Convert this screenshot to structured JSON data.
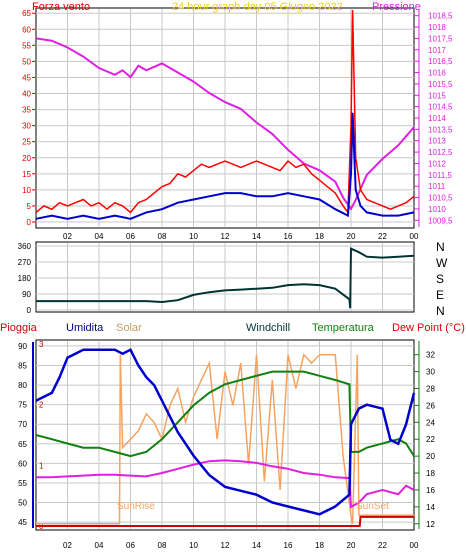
{
  "colors": {
    "wind_avg": "#0000cc",
    "wind_gust": "#ff0000",
    "pressure": "#e020e0",
    "direction": "#003333",
    "humidity": "#0000cc",
    "solar": "#f4a460",
    "temperature": "#108010",
    "dewpoint": "#e020e0",
    "rain": "#cc0000",
    "grid": "#c8c8c8"
  },
  "chart_data": [
    {
      "id": "wind-pressure",
      "type": "line",
      "title": "24 hour graph day  05 Giugno 2022",
      "ylabel_left": "Forza vento",
      "ylabel_right": "Pressione",
      "ylim_left": [
        0,
        66
      ],
      "ylim_right": [
        1009.25,
        1018.75
      ],
      "yticks_left": [
        "0",
        "5",
        "10",
        "15",
        "20",
        "25",
        "30",
        "35",
        "40",
        "45",
        "50",
        "55",
        "60",
        "65"
      ],
      "yticks_right": [
        "1009,5",
        "1010",
        "1010,5",
        "1011",
        "1011,5",
        "1012",
        "1012,5",
        "1013",
        "1013,5",
        "1014",
        "1014,5",
        "1015",
        "1015,5",
        "1016",
        "1016,5",
        "1017",
        "1017,5",
        "1018",
        "1018,5"
      ],
      "xlim": [
        0,
        24
      ],
      "xticks": [
        "02",
        "04",
        "06",
        "08",
        "10",
        "12",
        "14",
        "16",
        "18",
        "20",
        "22",
        "00"
      ],
      "grid": true,
      "series": [
        {
          "name": "gust",
          "axis": "left",
          "x": [
            0,
            0.5,
            1,
            1.5,
            2,
            2.5,
            3,
            3.5,
            4,
            4.5,
            5,
            5.5,
            6,
            6.5,
            7,
            7.5,
            8,
            8.5,
            9,
            9.5,
            10,
            10.5,
            11,
            11.5,
            12,
            12.5,
            13,
            13.5,
            14,
            14.5,
            15,
            15.5,
            16,
            16.5,
            17,
            17.5,
            18,
            18.5,
            19,
            19.5,
            19.8,
            20,
            20.1,
            20.3,
            20.6,
            21,
            21.5,
            22,
            22.5,
            23,
            23.5,
            24
          ],
          "y": [
            3,
            5,
            4,
            6,
            5,
            6,
            7,
            5,
            6,
            4,
            6,
            5,
            3,
            6,
            7,
            9,
            11,
            12,
            15,
            14,
            16,
            18,
            17,
            18,
            19,
            18,
            17,
            18,
            19,
            18,
            17,
            16,
            19,
            17,
            18,
            15,
            13,
            11,
            9,
            5,
            3,
            30,
            66,
            20,
            10,
            7,
            6,
            5,
            4,
            5,
            6,
            8
          ]
        },
        {
          "name": "average",
          "axis": "left",
          "x": [
            0,
            1,
            2,
            3,
            4,
            5,
            6,
            7,
            8,
            9,
            10,
            11,
            12,
            13,
            14,
            15,
            16,
            17,
            18,
            19,
            19.8,
            20,
            20.1,
            20.3,
            20.6,
            21,
            22,
            23,
            24
          ],
          "y": [
            1,
            2,
            1,
            2,
            1,
            2,
            1,
            3,
            4,
            6,
            7,
            8,
            9,
            9,
            8,
            8,
            9,
            8,
            7,
            4,
            2,
            15,
            34,
            10,
            5,
            3,
            2,
            2,
            3
          ]
        },
        {
          "name": "pressure",
          "axis": "right",
          "x": [
            0,
            1,
            2,
            3,
            4,
            5,
            5.5,
            6,
            6.5,
            7,
            8,
            9,
            10,
            11,
            12,
            13,
            14,
            15,
            16,
            17,
            18,
            19,
            19.5,
            20,
            20.3,
            21,
            22,
            23,
            24
          ],
          "y": [
            1017.5,
            1017.4,
            1017.1,
            1016.7,
            1016.2,
            1015.9,
            1016.1,
            1015.8,
            1016.3,
            1016.1,
            1016.4,
            1016.0,
            1015.6,
            1015.1,
            1014.7,
            1014.4,
            1013.8,
            1013.3,
            1012.6,
            1012.0,
            1011.7,
            1011.2,
            1010.5,
            1010.0,
            1010.4,
            1011.5,
            1012.2,
            1012.8,
            1013.6
          ]
        }
      ]
    },
    {
      "id": "wind-direction",
      "type": "line",
      "ylim": [
        0,
        360
      ],
      "yticks": [
        "0",
        "90",
        "180",
        "270",
        "360"
      ],
      "xlim": [
        0,
        24
      ],
      "compass_labels": [
        "N",
        "W",
        "S",
        "E",
        "N"
      ],
      "grid": true,
      "series": [
        {
          "name": "direction",
          "x": [
            0,
            1,
            2,
            3,
            4,
            5,
            6,
            7,
            8,
            9,
            10,
            11,
            12,
            13,
            14,
            15,
            16,
            17,
            18,
            19,
            19.9,
            19.95,
            20,
            20.5,
            21,
            22,
            23,
            24
          ],
          "y": [
            50,
            50,
            50,
            50,
            50,
            50,
            50,
            50,
            45,
            55,
            85,
            100,
            110,
            115,
            120,
            125,
            140,
            145,
            140,
            120,
            60,
            10,
            345,
            325,
            300,
            295,
            300,
            305
          ]
        }
      ]
    },
    {
      "id": "temp-humidity",
      "type": "line",
      "legend": [
        "Pioggia",
        "Umidita",
        "Solar",
        "Windchill",
        "Temperatura",
        "Dew Point (°C)"
      ],
      "ylim_left": [
        43.5,
        91
      ],
      "ylim_right": [
        11.5,
        33.5
      ],
      "yticks_left": [
        "45",
        "50",
        "55",
        "60",
        "65",
        "70",
        "75",
        "80",
        "85",
        "90"
      ],
      "yticks_right": [
        "12",
        "14",
        "16",
        "18",
        "20",
        "22",
        "24",
        "26",
        "28",
        "30",
        "32"
      ],
      "rain_ticks": [
        "0",
        "1",
        "2",
        "3"
      ],
      "xlim": [
        0,
        24
      ],
      "xticks": [
        "02",
        "04",
        "06",
        "08",
        "10",
        "12",
        "14",
        "16",
        "18",
        "20",
        "22",
        "00"
      ],
      "annotations": [
        "SunRise",
        "SunSet"
      ],
      "grid": true,
      "series": [
        {
          "name": "humidity",
          "axis": "left",
          "x": [
            0,
            0.5,
            1,
            1.5,
            2,
            3,
            4,
            5,
            5.5,
            6,
            6.5,
            7,
            7.5,
            8,
            9,
            10,
            11,
            12,
            13,
            14,
            15,
            16,
            17,
            18,
            19,
            19.9,
            20,
            20.5,
            21,
            22,
            22.5,
            23,
            23.5,
            24
          ],
          "y": [
            76,
            77,
            78,
            82,
            87,
            89,
            89,
            89,
            88,
            89,
            85,
            82,
            80,
            76,
            68,
            62,
            57,
            54,
            53,
            52,
            50,
            49,
            48,
            47,
            49,
            52,
            70,
            74,
            75,
            74,
            66,
            65,
            70,
            78
          ]
        },
        {
          "name": "temperature",
          "axis": "right",
          "x": [
            0,
            1,
            2,
            3,
            4,
            5,
            6,
            7,
            8,
            9,
            10,
            11,
            12,
            13,
            14,
            15,
            16,
            17,
            18,
            19,
            19.9,
            20,
            20.5,
            21,
            22,
            23,
            23.5,
            24
          ],
          "y": [
            22.5,
            22,
            21.5,
            21,
            21,
            20.5,
            20,
            20.5,
            22,
            24,
            26,
            27.5,
            28.5,
            29,
            29.5,
            30,
            30,
            30,
            29.5,
            29,
            28.5,
            20.5,
            20.5,
            21,
            21.5,
            22,
            21.5,
            20
          ]
        },
        {
          "name": "dewpoint",
          "axis": "right",
          "x": [
            0,
            1,
            2,
            3,
            4,
            5,
            6,
            7,
            8,
            9,
            10,
            11,
            12,
            13,
            14,
            15,
            16,
            17,
            18,
            19,
            19.9,
            20,
            20.5,
            21,
            22,
            23,
            23.5,
            24
          ],
          "y": [
            17.5,
            17.5,
            17.6,
            17.7,
            17.8,
            17.8,
            17.7,
            17.6,
            18,
            18.5,
            19,
            19.4,
            19.5,
            19.4,
            19.2,
            18.8,
            18.5,
            18,
            17.8,
            17.5,
            17.4,
            14,
            14.5,
            15.5,
            16,
            15.5,
            16.5,
            16
          ]
        },
        {
          "name": "solar",
          "axis": "right",
          "x": [
            0,
            5.3,
            5.35,
            5.5,
            6,
            6.5,
            7,
            7.5,
            8,
            8.5,
            9,
            9.5,
            10,
            10.5,
            11,
            11.5,
            12,
            12.5,
            13,
            13.5,
            14,
            14.5,
            15,
            15.5,
            16,
            16.5,
            17,
            17.5,
            18,
            18.5,
            19,
            19.5,
            20,
            20.1,
            20.4,
            20.5,
            21,
            24
          ],
          "y": [
            12,
            12,
            32,
            21,
            22,
            23,
            25,
            24,
            22,
            26,
            28,
            24,
            27,
            29,
            31,
            22,
            30,
            26,
            31,
            19,
            32,
            17,
            29,
            16,
            32,
            28,
            32,
            31,
            32,
            32,
            32,
            20,
            13,
            12,
            32,
            13,
            13,
            13
          ]
        },
        {
          "name": "rain",
          "axis": "rain",
          "x": [
            0,
            20.55,
            20.6,
            24
          ],
          "y": [
            0,
            0,
            0.15,
            0.15
          ]
        }
      ]
    }
  ]
}
